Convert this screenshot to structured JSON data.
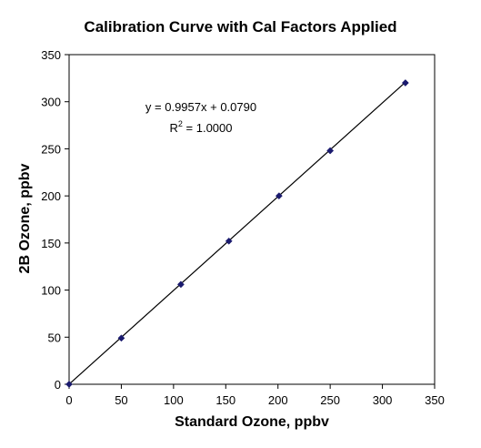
{
  "chart_data": {
    "type": "scatter",
    "title": "Calibration Curve with Cal Factors Applied",
    "xlabel": "Standard Ozone, ppbv",
    "ylabel": "2B Ozone, ppbv",
    "xlim": [
      0,
      350
    ],
    "ylim": [
      0,
      350
    ],
    "x_ticks": [
      0,
      50,
      100,
      150,
      200,
      250,
      300,
      350
    ],
    "y_ticks": [
      0,
      50,
      100,
      150,
      200,
      250,
      300,
      350
    ],
    "grid": false,
    "legend": "none",
    "series": [
      {
        "points": [
          {
            "x": 0,
            "y": 0
          },
          {
            "x": 50,
            "y": 49
          },
          {
            "x": 107,
            "y": 106
          },
          {
            "x": 153,
            "y": 152
          },
          {
            "x": 201,
            "y": 200
          },
          {
            "x": 250,
            "y": 248
          },
          {
            "x": 322,
            "y": 320
          }
        ],
        "marker": "diamond",
        "color": "#1a1a6e"
      }
    ],
    "trendline": {
      "slope": 0.9957,
      "intercept": 0.079,
      "x_range": [
        0,
        322
      ],
      "color": "#000000",
      "equation_label": "y = 0.9957x + 0.0790",
      "r2_label_prefix": "R",
      "r2_label_sup": "2",
      "r2_label_value": " = 1.0000"
    }
  }
}
